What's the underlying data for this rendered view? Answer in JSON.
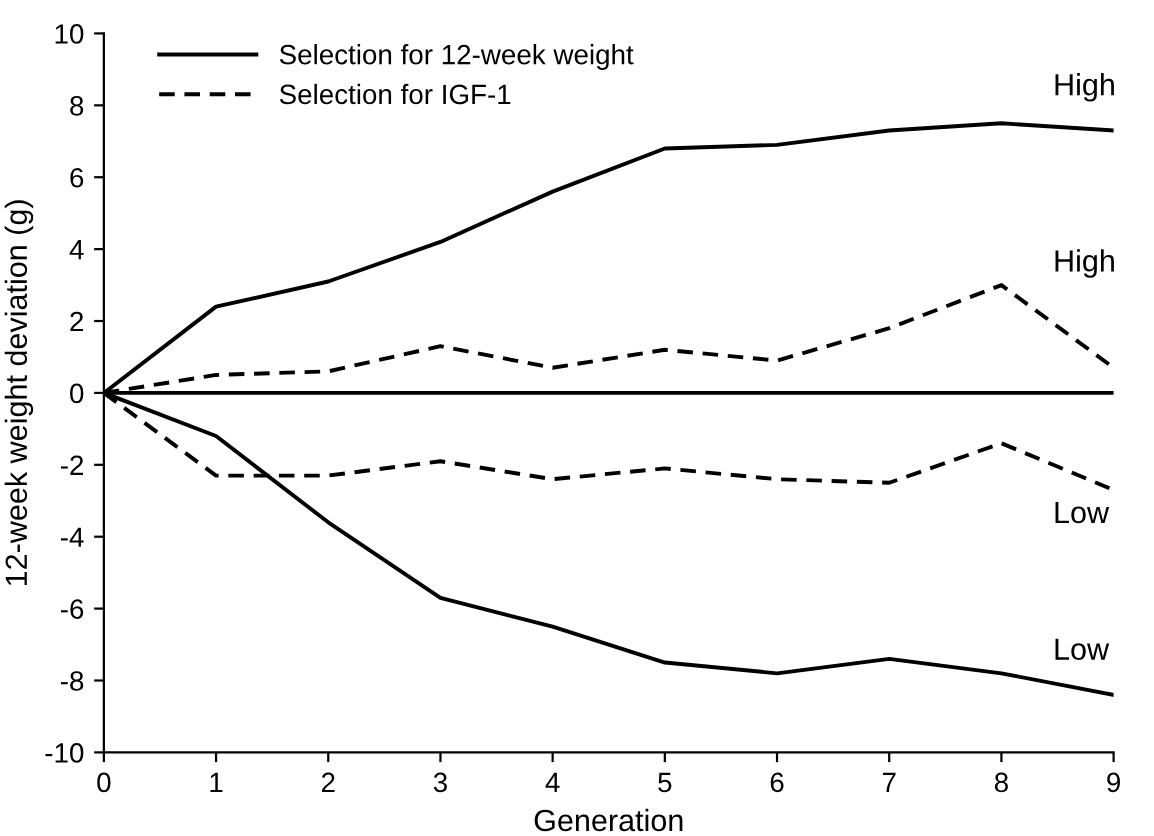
{
  "chart_data": {
    "type": "line",
    "xlabel": "Generation",
    "ylabel": "12-week weight deviation (g)",
    "x": [
      0,
      1,
      2,
      3,
      4,
      5,
      6,
      7,
      8,
      9
    ],
    "series": [
      {
        "name": "Selection for 12-week weight",
        "color": "#000000",
        "line_style": "solid",
        "values": [
          0,
          2.4,
          3.1,
          4.2,
          5.6,
          6.8,
          6.9,
          7.3,
          7.5,
          7.3
        ]
      },
      {
        "name": "Selection for IGF-1",
        "color": "#000000",
        "line_style": "dashed",
        "values": [
          0,
          0.5,
          0.6,
          1.3,
          0.7,
          1.2,
          0.9,
          1.8,
          3.0,
          0.7
        ]
      },
      {
        "color": "#000000",
        "line_style": "dashed",
        "values": [
          0,
          -2.3,
          -2.3,
          -1.9,
          -2.4,
          -2.1,
          -2.4,
          -2.5,
          -1.4,
          -2.7
        ]
      },
      {
        "color": "#000000",
        "line_style": "solid",
        "values": [
          0,
          -1.2,
          -3.6,
          -5.7,
          -6.5,
          -7.5,
          -7.8,
          -7.4,
          -7.8,
          -8.4
        ]
      }
    ],
    "ref_lines": [
      {
        "axis": "y",
        "value": 0,
        "color": "#000000",
        "line_style": "solid"
      }
    ],
    "annotations": [
      "High",
      "High",
      "Low",
      "Low"
    ],
    "xlim": [
      0,
      9
    ],
    "xticks": [
      0,
      1,
      2,
      3,
      4,
      5,
      6,
      7,
      8,
      9
    ],
    "ylim": [
      -10,
      10
    ],
    "yticks": [
      -10,
      -8,
      -6,
      -4,
      -2,
      0,
      2,
      4,
      6,
      8,
      10
    ],
    "grid": false,
    "legend": "top left",
    "marker": "none"
  }
}
